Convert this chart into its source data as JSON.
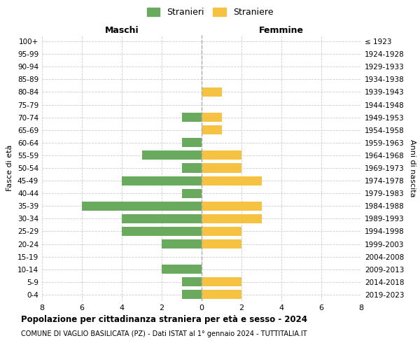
{
  "age_groups": [
    "100+",
    "95-99",
    "90-94",
    "85-89",
    "80-84",
    "75-79",
    "70-74",
    "65-69",
    "60-64",
    "55-59",
    "50-54",
    "45-49",
    "40-44",
    "35-39",
    "30-34",
    "25-29",
    "20-24",
    "15-19",
    "10-14",
    "5-9",
    "0-4"
  ],
  "birth_years": [
    "≤ 1923",
    "1924-1928",
    "1929-1933",
    "1934-1938",
    "1939-1943",
    "1944-1948",
    "1949-1953",
    "1954-1958",
    "1959-1963",
    "1964-1968",
    "1969-1973",
    "1974-1978",
    "1979-1983",
    "1984-1988",
    "1989-1993",
    "1994-1998",
    "1999-2003",
    "2004-2008",
    "2009-2013",
    "2014-2018",
    "2019-2023"
  ],
  "maschi": [
    0,
    0,
    0,
    0,
    0,
    0,
    1,
    0,
    1,
    3,
    1,
    4,
    1,
    6,
    4,
    4,
    2,
    0,
    2,
    1,
    1
  ],
  "femmine": [
    0,
    0,
    0,
    0,
    1,
    0,
    1,
    1,
    0,
    2,
    2,
    3,
    0,
    3,
    3,
    2,
    2,
    0,
    0,
    2,
    2
  ],
  "color_maschi": "#6aaa5e",
  "color_femmine": "#f5c242",
  "title_main": "Popolazione per cittadinanza straniera per età e sesso - 2024",
  "title_sub": "COMUNE DI VAGLIO BASILICATA (PZ) - Dati ISTAT al 1° gennaio 2024 - TUTTITALIA.IT",
  "label_maschi": "Stranieri",
  "label_femmine": "Straniere",
  "xlabel_left": "Maschi",
  "xlabel_right": "Femmine",
  "ylabel_left": "Fasce di età",
  "ylabel_right": "Anni di nascita",
  "xlim": 8,
  "background_color": "#ffffff"
}
